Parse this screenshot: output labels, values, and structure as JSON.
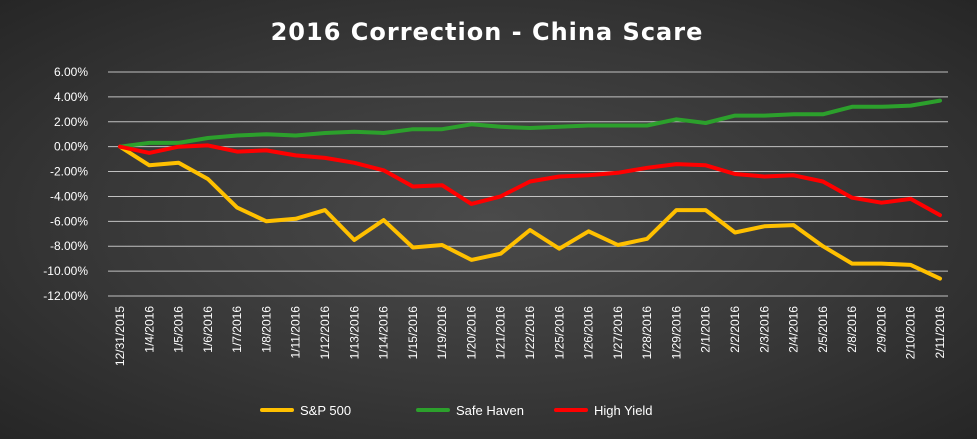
{
  "chart_data": {
    "type": "line",
    "title": "2016 Correction  - China  Scare",
    "xlabel": "",
    "ylabel": "",
    "ylim": [
      -12,
      6
    ],
    "yticks": [
      6,
      4,
      2,
      0,
      -2,
      -4,
      -6,
      -8,
      -10,
      -12
    ],
    "ytick_labels": [
      "6.00%",
      "4.00%",
      "2.00%",
      "0.00%",
      "-2.00%",
      "-4.00%",
      "-6.00%",
      "-8.00%",
      "-10.00%",
      "-12.00%"
    ],
    "grid": true,
    "legend_position": "bottom",
    "categories": [
      "12/31/2015",
      "1/4/2016",
      "1/5/2016",
      "1/6/2016",
      "1/7/2016",
      "1/8/2016",
      "1/11/2016",
      "1/12/2016",
      "1/13/2016",
      "1/14/2016",
      "1/15/2016",
      "1/19/2016",
      "1/20/2016",
      "1/21/2016",
      "1/22/2016",
      "1/25/2016",
      "1/26/2016",
      "1/27/2016",
      "1/28/2016",
      "1/29/2016",
      "2/1/2016",
      "2/2/2016",
      "2/3/2016",
      "2/4/2016",
      "2/5/2016",
      "2/8/2016",
      "2/9/2016",
      "2/10/2016",
      "2/11/2016"
    ],
    "series": [
      {
        "name": "S&P 500",
        "color": "#ffc000",
        "values": [
          0,
          -1.5,
          -1.3,
          -2.6,
          -4.9,
          -6.0,
          -5.8,
          -5.1,
          -7.5,
          -5.9,
          -8.1,
          -7.9,
          -9.1,
          -8.6,
          -6.7,
          -8.2,
          -6.8,
          -7.9,
          -7.4,
          -5.1,
          -5.1,
          -6.9,
          -6.4,
          -6.3,
          -8.0,
          -9.4,
          -9.4,
          -9.5,
          -10.6
        ]
      },
      {
        "name": "Safe Haven",
        "color": "#2ca02c",
        "values": [
          0,
          0.3,
          0.3,
          0.7,
          0.9,
          1.0,
          0.9,
          1.1,
          1.2,
          1.1,
          1.4,
          1.4,
          1.8,
          1.6,
          1.5,
          1.6,
          1.7,
          1.7,
          1.7,
          2.2,
          1.9,
          2.5,
          2.5,
          2.6,
          2.6,
          3.2,
          3.2,
          3.3,
          3.7
        ]
      },
      {
        "name": "High Yield",
        "color": "#ff0000",
        "values": [
          0,
          -0.5,
          0.0,
          0.1,
          -0.4,
          -0.3,
          -0.7,
          -0.9,
          -1.3,
          -1.9,
          -3.2,
          -3.1,
          -4.6,
          -4.0,
          -2.8,
          -2.4,
          -2.3,
          -2.1,
          -1.7,
          -1.4,
          -1.5,
          -2.2,
          -2.4,
          -2.3,
          -2.8,
          -4.1,
          -4.5,
          -4.2,
          -5.5
        ]
      }
    ]
  }
}
